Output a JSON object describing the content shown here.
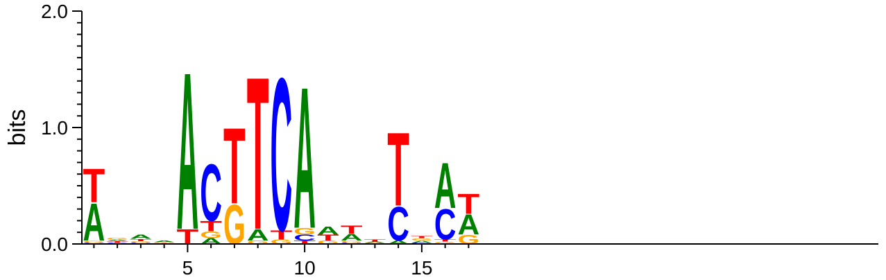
{
  "chart_data": {
    "type": "sequence-logo",
    "ylabel": "bits",
    "ylim": [
      0,
      2
    ],
    "y_ticks": [
      "0.0",
      "1.0",
      "2.0"
    ],
    "x_ticks": [
      5,
      10,
      15
    ],
    "positions": [
      1,
      2,
      3,
      4,
      5,
      6,
      7,
      8,
      9,
      10,
      11,
      12,
      13,
      14,
      15,
      16,
      17
    ],
    "colors": {
      "A": "#008000",
      "C": "#0000ff",
      "G": "#ffa500",
      "T": "#ff0000"
    },
    "letter_heights": [
      [
        {
          "l": "C",
          "h": 0.01
        },
        {
          "l": "G",
          "h": 0.02
        },
        {
          "l": "A",
          "h": 0.33
        },
        {
          "l": "T",
          "h": 0.3
        }
      ],
      [
        {
          "l": "C",
          "h": 0.01
        },
        {
          "l": "T",
          "h": 0.015
        },
        {
          "l": "A",
          "h": 0.01
        },
        {
          "l": "G",
          "h": 0.02
        }
      ],
      [
        {
          "l": "C",
          "h": 0.01
        },
        {
          "l": "G",
          "h": 0.015
        },
        {
          "l": "T",
          "h": 0.02
        },
        {
          "l": "A",
          "h": 0.035
        }
      ],
      [
        {
          "l": "C",
          "h": 0.005
        },
        {
          "l": "G",
          "h": 0.005
        },
        {
          "l": "T",
          "h": 0.005
        },
        {
          "l": "A",
          "h": 0.015
        }
      ],
      [
        {
          "l": "T",
          "h": 0.13
        },
        {
          "l": "A",
          "h": 1.39
        }
      ],
      [
        {
          "l": "A",
          "h": 0.05
        },
        {
          "l": "G",
          "h": 0.06
        },
        {
          "l": "T",
          "h": 0.09
        },
        {
          "l": "C",
          "h": 0.5
        }
      ],
      [
        {
          "l": "G",
          "h": 0.35
        },
        {
          "l": "T",
          "h": 0.67
        }
      ],
      [
        {
          "l": "G",
          "h": 0.03
        },
        {
          "l": "A",
          "h": 0.1
        },
        {
          "l": "T",
          "h": 1.35
        }
      ],
      [
        {
          "l": "G",
          "h": 0.04
        },
        {
          "l": "T",
          "h": 0.08
        },
        {
          "l": "C",
          "h": 1.35
        }
      ],
      [
        {
          "l": "T",
          "h": 0.03
        },
        {
          "l": "C",
          "h": 0.05
        },
        {
          "l": "G",
          "h": 0.06
        },
        {
          "l": "A",
          "h": 1.25
        }
      ],
      [
        {
          "l": "G",
          "h": 0.03
        },
        {
          "l": "T",
          "h": 0.05
        },
        {
          "l": "A",
          "h": 0.07
        }
      ],
      [
        {
          "l": "C",
          "h": 0.01
        },
        {
          "l": "G",
          "h": 0.02
        },
        {
          "l": "A",
          "h": 0.06
        },
        {
          "l": "T",
          "h": 0.07
        }
      ],
      [
        {
          "l": "G",
          "h": 0.01
        },
        {
          "l": "A",
          "h": 0.01
        },
        {
          "l": "T",
          "h": 0.02
        }
      ],
      [
        {
          "l": "A",
          "h": 0.03
        },
        {
          "l": "C",
          "h": 0.3
        },
        {
          "l": "T",
          "h": 0.65
        }
      ],
      [
        {
          "l": "C",
          "h": 0.01
        },
        {
          "l": "A",
          "h": 0.02
        },
        {
          "l": "G",
          "h": 0.02
        },
        {
          "l": "T",
          "h": 0.02
        }
      ],
      [
        {
          "l": "G",
          "h": 0.02
        },
        {
          "l": "T",
          "h": 0.02
        },
        {
          "l": "C",
          "h": 0.27
        },
        {
          "l": "A",
          "h": 0.4
        }
      ],
      [
        {
          "l": "G",
          "h": 0.08
        },
        {
          "l": "A",
          "h": 0.18
        },
        {
          "l": "T",
          "h": 0.18
        }
      ]
    ]
  }
}
